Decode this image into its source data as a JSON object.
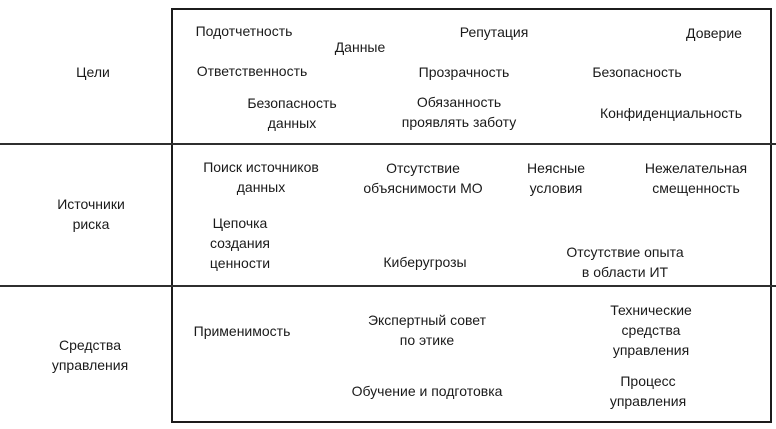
{
  "diagram": {
    "colors": {
      "background": "#ffffff",
      "border": "#1c1c1c",
      "text": "#1a1a1a"
    },
    "rows": [
      {
        "label": "Цели",
        "items": [
          "Подотчетность",
          "Данные",
          "Репутация",
          "Доверие",
          "Ответственность",
          "Прозрачность",
          "Безопасность",
          "Безопасность\nданных",
          "Обязанность\nпроявлять заботу",
          "Конфиденциальность"
        ]
      },
      {
        "label": "Источники\nриска",
        "items": [
          "Поиск источников\nданных",
          "Отсутствие\nобъяснимости МО",
          "Неясные\nусловия",
          "Нежелательная\nсмещенность",
          "Цепочка\nсоздания\nценности",
          "Киберугрозы",
          "Отсутствие опыта\nв области ИТ"
        ]
      },
      {
        "label": "Средства\nуправления",
        "items": [
          "Применимость",
          "Экспертный совет\nпо этике",
          "Технические средства\nуправления",
          "Обучение и подготовка",
          "Процесс управления"
        ]
      }
    ]
  }
}
